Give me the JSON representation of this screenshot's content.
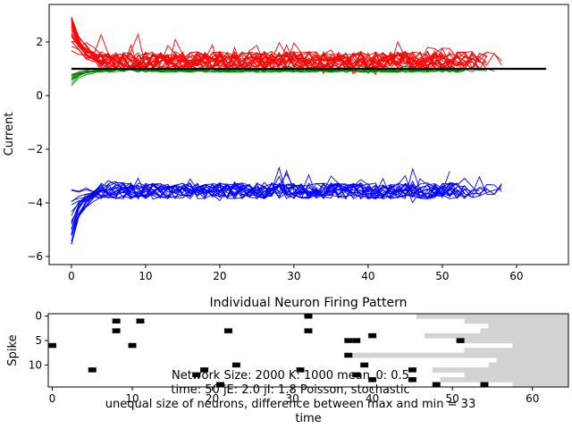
{
  "chart_data": [
    {
      "type": "line",
      "title": "",
      "xlabel": "",
      "ylabel": "Current",
      "xlim": [
        -3,
        67
      ],
      "ylim": [
        -6.3,
        3.4
      ],
      "xticks": [
        0,
        10,
        20,
        30,
        40,
        50,
        60
      ],
      "yticks": [
        -6,
        -4,
        -2,
        0,
        2
      ],
      "grid": false,
      "legend": "none",
      "colors": {
        "excitatory": "#ff0000",
        "inhibitory": "#0000ff",
        "green": "#008000",
        "threshold": "#000000"
      },
      "series": [
        {
          "group": "excitatory",
          "color": "#ff0000",
          "count": 22,
          "x_range": [
            0,
            58
          ],
          "start_range": [
            1.6,
            3.0
          ],
          "mean": 1.3,
          "spread": 0.35
        },
        {
          "group": "green",
          "color": "#008000",
          "count": 10,
          "x_range": [
            0,
            58
          ],
          "start_range": [
            0.3,
            0.9
          ],
          "mean": 0.95,
          "spread": 0.08
        },
        {
          "group": "inhibitory",
          "color": "#0000ff",
          "count": 20,
          "x_range": [
            0,
            58
          ],
          "start_range": [
            -5.9,
            -3.4
          ],
          "mean": -3.55,
          "spread": 0.3
        },
        {
          "group": "threshold",
          "color": "#000000",
          "x": [
            0,
            64
          ],
          "y": [
            1.0,
            1.0
          ]
        }
      ]
    },
    {
      "type": "scatter",
      "title": "Individual Neuron Firing Pattern",
      "xlabel": "time",
      "ylabel": "Spike",
      "xlim": [
        -0.5,
        64.5
      ],
      "ylim": [
        14.5,
        -0.5
      ],
      "xticks": [
        0,
        10,
        20,
        30,
        40,
        50,
        60
      ],
      "yticks": [
        0,
        5,
        10
      ],
      "spikes": [
        [
          8,
          1
        ],
        [
          11,
          1
        ],
        [
          32,
          0
        ],
        [
          8,
          3
        ],
        [
          22,
          3
        ],
        [
          32,
          3
        ],
        [
          0,
          6
        ],
        [
          10,
          6
        ],
        [
          37,
          5
        ],
        [
          38,
          5
        ],
        [
          40,
          4
        ],
        [
          51,
          5
        ],
        [
          37,
          8
        ],
        [
          5,
          11
        ],
        [
          19,
          11
        ],
        [
          23,
          10
        ],
        [
          31,
          11
        ],
        [
          39,
          10
        ],
        [
          18,
          12
        ],
        [
          38,
          12
        ],
        [
          45,
          11
        ],
        [
          40,
          13
        ],
        [
          45,
          13
        ],
        [
          21,
          14
        ],
        [
          48,
          14
        ],
        [
          54,
          14
        ]
      ],
      "end_times": [
        46,
        52,
        55,
        54,
        47,
        51,
        58,
        52,
        38,
        56,
        55,
        48,
        52,
        49,
        58
      ],
      "colors": {
        "spike": "#000000",
        "inactive": "#d3d3d3",
        "active": "#ffffff"
      }
    }
  ],
  "annotation": {
    "line1": "Network Size: 2000  K: 1000  mean_0: 0.5",
    "line2": "time: 50  jE: 2.0   jI: 1.8  Poisson, stochastic",
    "line3": "unequal size of neurons, difference between max and min = 33"
  }
}
